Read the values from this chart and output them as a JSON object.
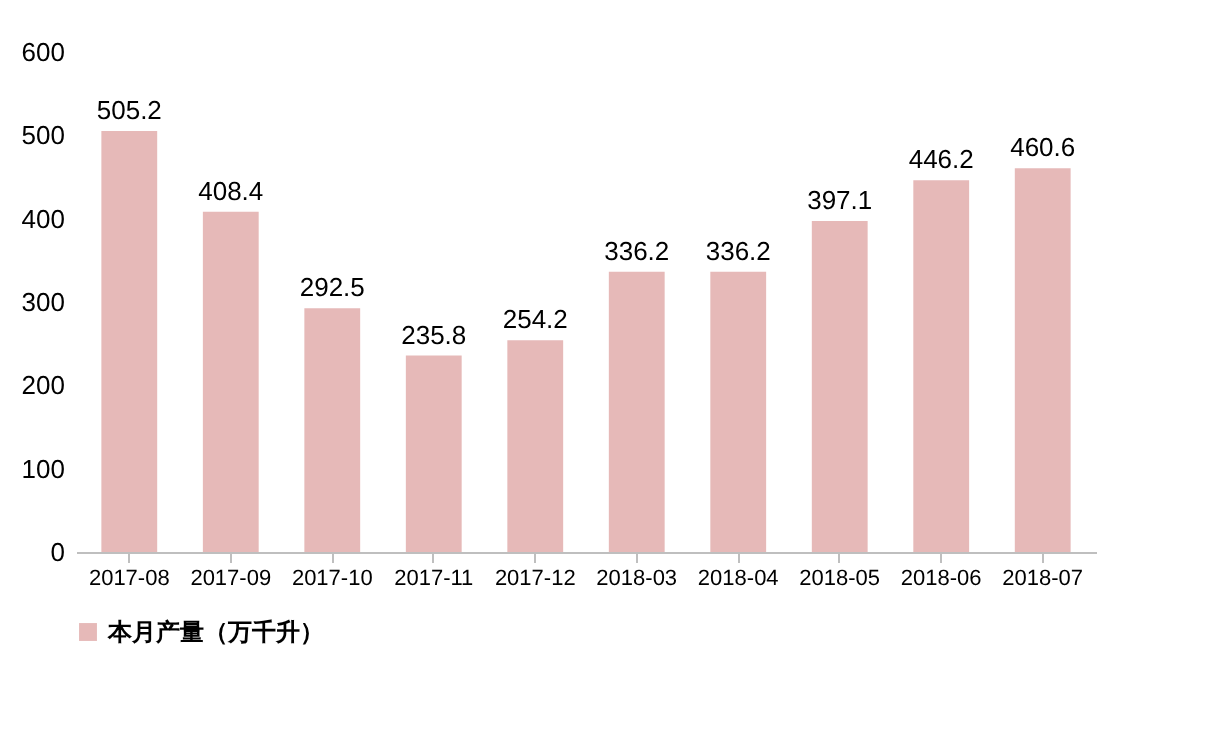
{
  "chart_data": {
    "type": "bar",
    "categories": [
      "2017-08",
      "2017-09",
      "2017-10",
      "2017-11",
      "2017-12",
      "2018-03",
      "2018-04",
      "2018-05",
      "2018-06",
      "2018-07"
    ],
    "series": [
      {
        "name": "本月产量（万千升）",
        "color": "#e6b9b8",
        "values": [
          505.2,
          408.4,
          292.5,
          235.8,
          254.2,
          336.2,
          336.2,
          397.1,
          446.2,
          460.6
        ]
      }
    ],
    "ylim": [
      0,
      600
    ],
    "yticks": [
      0,
      100,
      200,
      300,
      400,
      500,
      600
    ],
    "data_labels": true,
    "grid": false,
    "legend": "bottom"
  }
}
